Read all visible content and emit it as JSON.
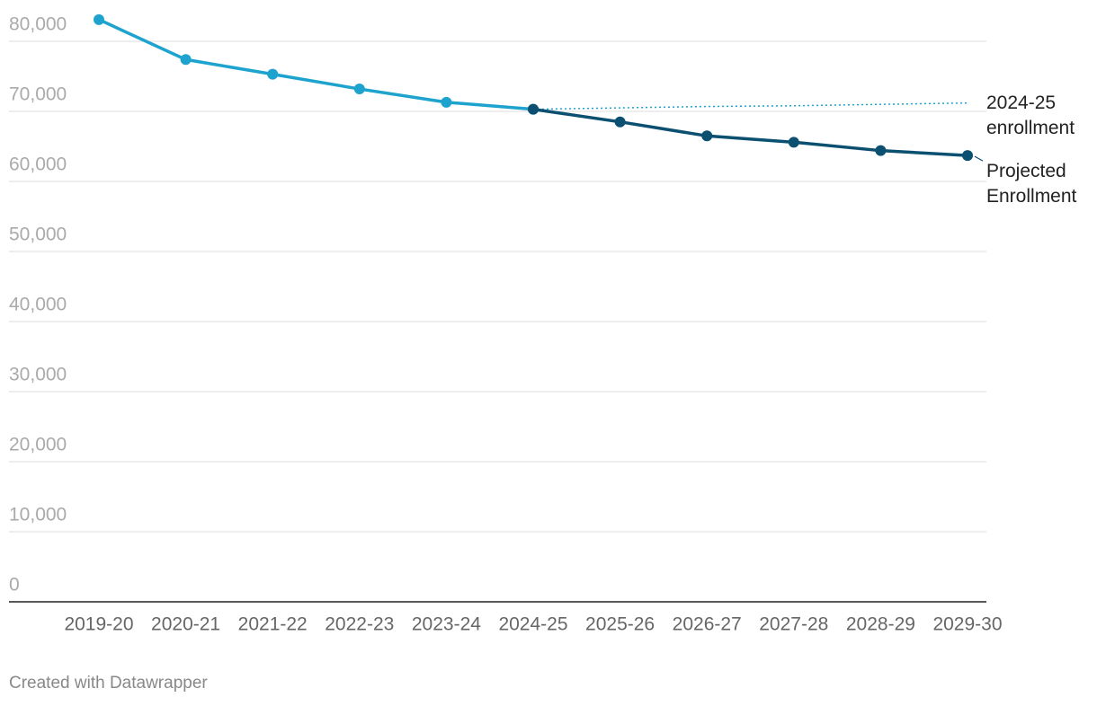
{
  "chart_data": {
    "type": "line",
    "categories": [
      "2019-20",
      "2020-21",
      "2021-22",
      "2022-23",
      "2023-24",
      "2024-25",
      "2025-26",
      "2026-27",
      "2027-28",
      "2028-29",
      "2029-30"
    ],
    "series": [
      {
        "color": "#1ea3cf",
        "style": "solid",
        "markers": true,
        "values": [
          83100,
          77400,
          75300,
          73200,
          71300,
          70300,
          null,
          null,
          null,
          null,
          null
        ]
      },
      {
        "name": "Projected Enrollment",
        "color": "#0b4f71",
        "style": "solid",
        "markers": true,
        "values": [
          null,
          null,
          null,
          null,
          null,
          70300,
          68500,
          66500,
          65600,
          64400,
          63700
        ]
      },
      {
        "name": "2024-25 enrollment",
        "color": "#1ea3cf",
        "style": "dotted",
        "markers": false,
        "values": [
          null,
          null,
          null,
          null,
          null,
          70300,
          70500,
          70700,
          70800,
          71000,
          71200
        ]
      }
    ],
    "ylim": [
      0,
      85000
    ],
    "yticks": [
      0,
      {
        "value": 10000,
        "label": "10,000"
      },
      {
        "value": 20000,
        "label": "20,000"
      },
      {
        "value": 30000,
        "label": "30,000"
      },
      {
        "value": 40000,
        "label": "40,000"
      },
      {
        "value": 50000,
        "label": "50,000"
      },
      {
        "value": 60000,
        "label": "60,000"
      },
      {
        "value": 70000,
        "label": "70,000"
      },
      {
        "value": 80000,
        "label": "80,000"
      }
    ],
    "grid": true,
    "footer": "Created with Datawrapper"
  }
}
